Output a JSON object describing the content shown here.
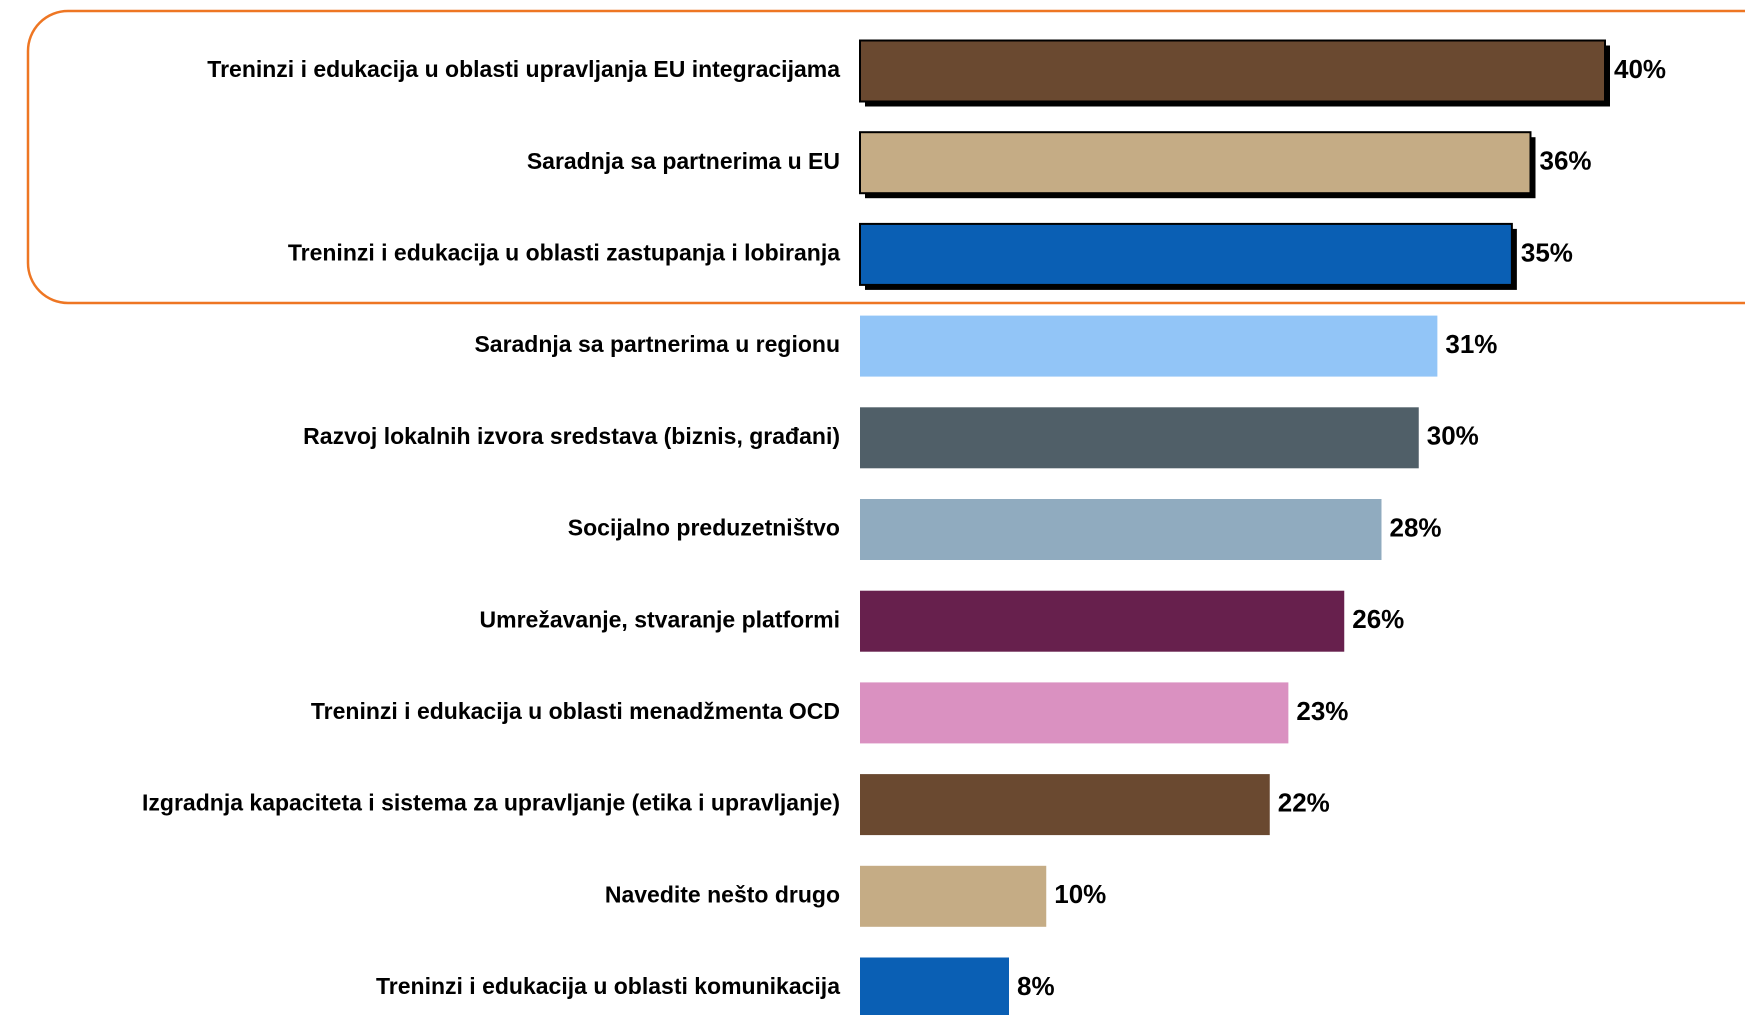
{
  "chart_data": {
    "type": "bar",
    "orientation": "horizontal",
    "categories": [
      "Treninzi i edukacija u oblasti upravljanja EU integracijama",
      "Saradnja sa partnerima u EU",
      "Treninzi i edukacija u oblasti zastupanja i lobiranja",
      "Saradnja sa partnerima u regionu",
      "Razvoj lokalnih izvora sredstava (biznis, građani)",
      "Socijalno preduzetništvo",
      "Umrežavanje, stvaranje platformi",
      "Treninzi i edukacija u oblasti menadžmenta OCD",
      "Izgradnja kapaciteta i sistema za upravljanje (etika i upravljanje)",
      "Navedite nešto drugo",
      "Treninzi i edukacija u oblasti komunikacija"
    ],
    "values": [
      40,
      36,
      35,
      31,
      30,
      28,
      26,
      23,
      22,
      10,
      8
    ],
    "value_labels": [
      "40%",
      "36%",
      "35%",
      "31%",
      "30%",
      "28%",
      "26%",
      "23%",
      "22%",
      "10%",
      "8%"
    ],
    "colors": [
      "#6a4930",
      "#c5ac85",
      "#0a5fb4",
      "#92c5f7",
      "#505f68",
      "#90abbf",
      "#67204d",
      "#da91c1",
      "#6a4930",
      "#c5ac85",
      "#0a5fb4"
    ],
    "xlim": [
      0,
      40
    ]
  }
}
